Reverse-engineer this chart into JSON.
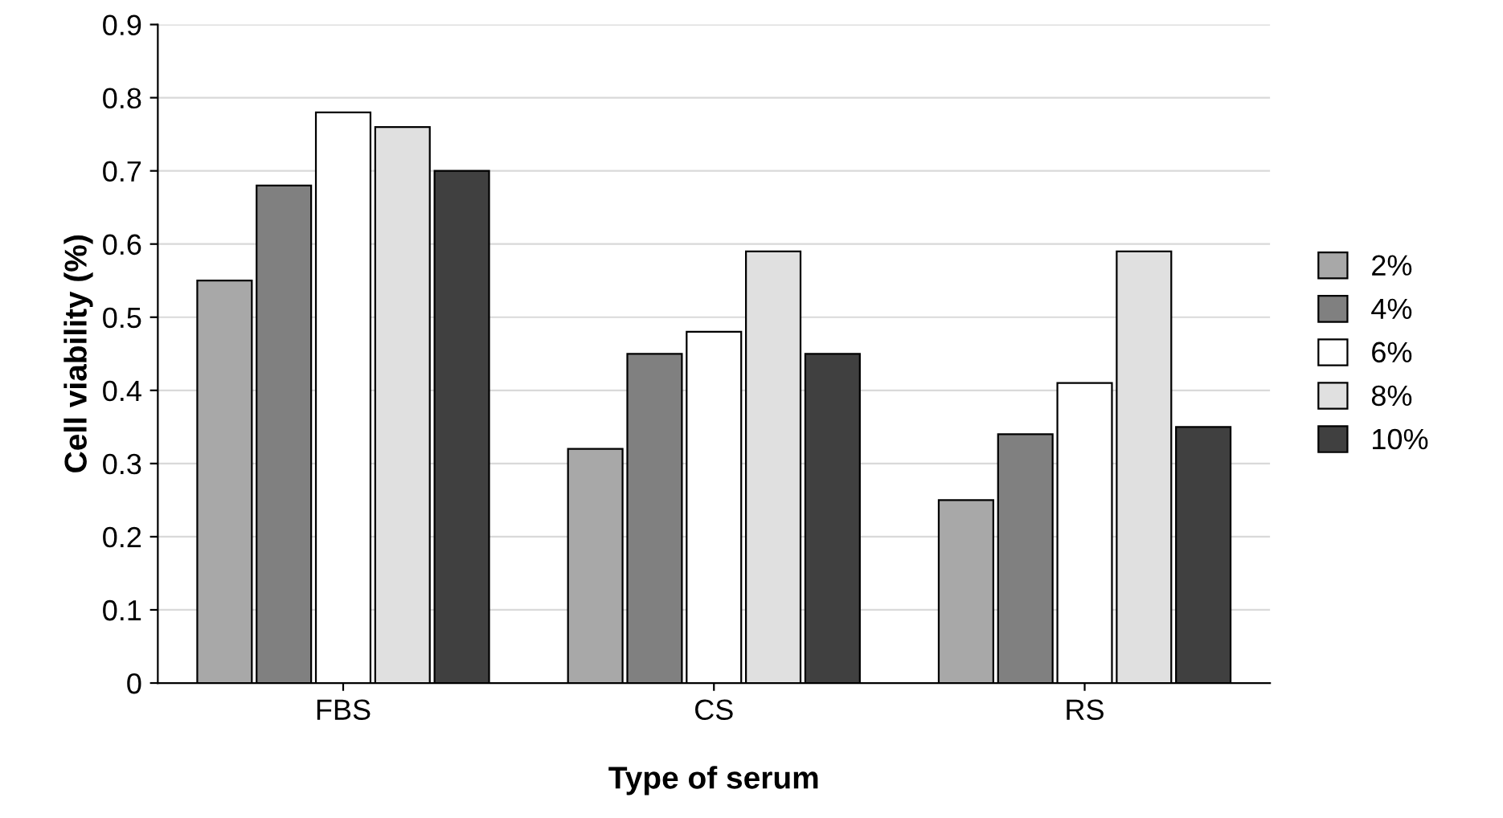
{
  "chart_data": {
    "type": "bar",
    "xlabel": "Type of serum",
    "ylabel": "Cell viability (%)",
    "categories": [
      "FBS",
      "CS",
      "RS"
    ],
    "series": [
      {
        "name": "2%",
        "color": "#a8a8a8",
        "values": [
          0.55,
          0.32,
          0.25
        ]
      },
      {
        "name": "4%",
        "color": "#808080",
        "values": [
          0.68,
          0.45,
          0.34
        ]
      },
      {
        "name": "6%",
        "color": "#ffffff",
        "values": [
          0.78,
          0.48,
          0.41
        ]
      },
      {
        "name": "8%",
        "color": "#e0e0e0",
        "values": [
          0.76,
          0.59,
          0.59
        ]
      },
      {
        "name": "10%",
        "color": "#404040",
        "values": [
          0.7,
          0.45,
          0.35
        ]
      }
    ],
    "ylim": [
      0,
      0.9
    ],
    "yticks": [
      {
        "value": 0,
        "label": "0"
      },
      0.1,
      0.2,
      0.3,
      0.4,
      0.5,
      0.6,
      0.7,
      0.8,
      0.9
    ],
    "grid": "y",
    "legend": "right"
  }
}
